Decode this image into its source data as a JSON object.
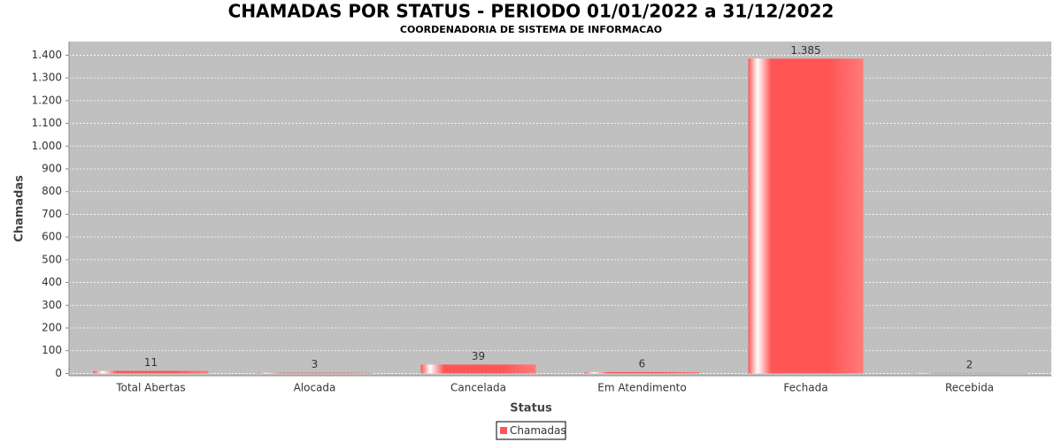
{
  "chart_data": {
    "type": "bar",
    "title": "CHAMADAS POR STATUS - PERIODO 01/01/2022 a 31/12/2022",
    "subtitle": "COORDENADORIA DE SISTEMA DE INFORMACAO",
    "x_label": "Status",
    "y_label": "Chamadas",
    "categories": [
      "Total Abertas",
      "Alocada",
      "Cancelada",
      "Em Atendimento",
      "Fechada",
      "Recebida"
    ],
    "series": [
      {
        "name": "Chamadas",
        "color": "#ff5555",
        "values": [
          11,
          3,
          39,
          6,
          1385,
          2
        ],
        "value_labels": [
          "11",
          "3",
          "39",
          "6",
          "1.385",
          "2"
        ]
      }
    ],
    "ylim": [
      -10,
      1460
    ],
    "yticks": [
      0,
      100,
      200,
      300,
      400,
      500,
      600,
      700,
      800,
      900,
      {
        "value": 1000,
        "label": "1.000"
      },
      {
        "value": 1100,
        "label": "1.100"
      },
      {
        "value": 1200,
        "label": "1.200"
      },
      {
        "value": 1300,
        "label": "1.300"
      },
      {
        "value": 1400,
        "label": "1.400"
      }
    ],
    "grid": true,
    "legend": "bottom"
  }
}
